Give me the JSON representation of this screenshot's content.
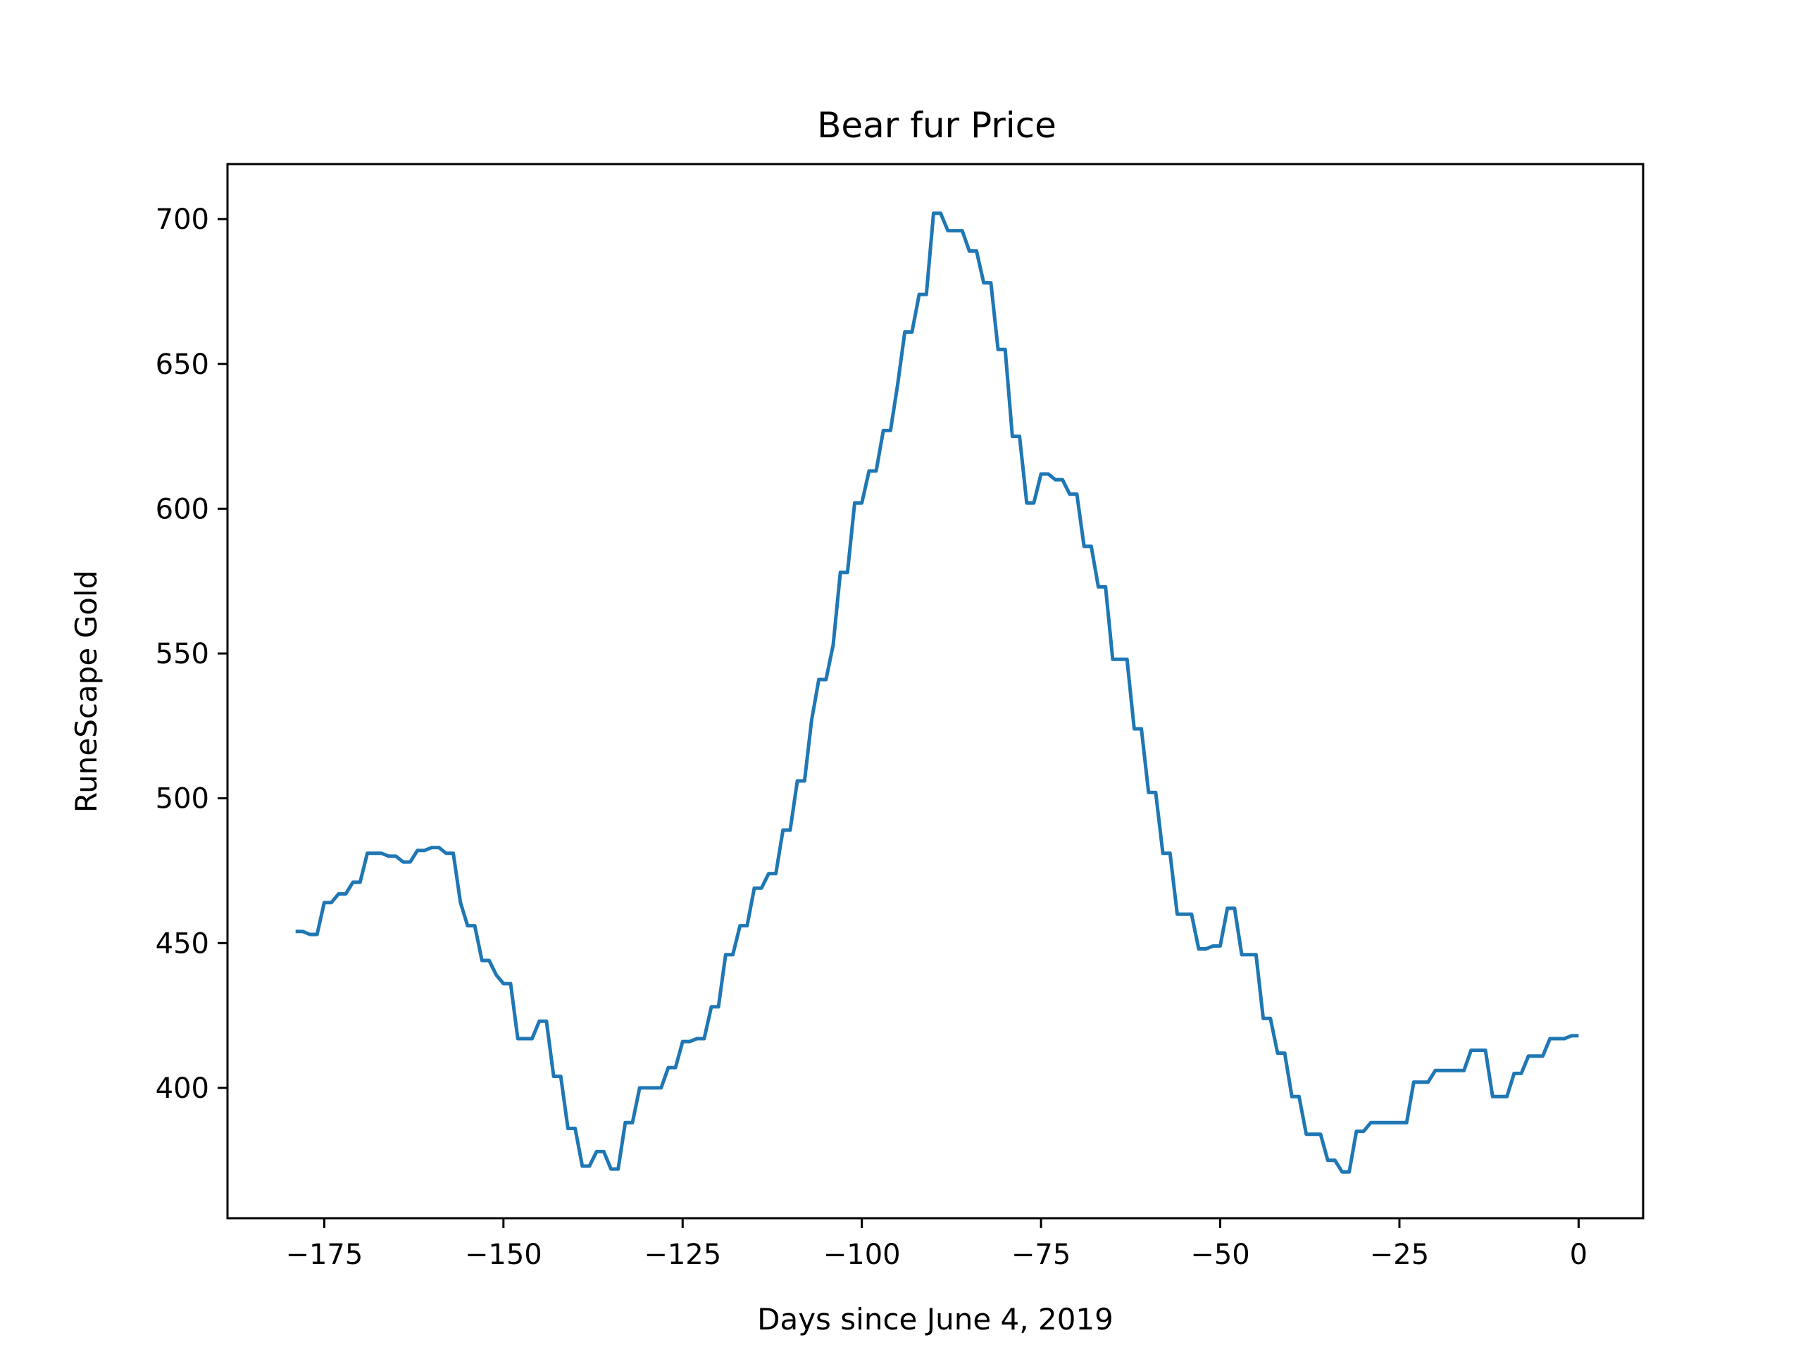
{
  "chart_data": {
    "type": "line",
    "title": "Bear fur Price",
    "xlabel": "Days since June 4, 2019",
    "ylabel": "RuneScape Gold",
    "xlim": [
      -188.5,
      9
    ],
    "ylim": [
      355,
      719
    ],
    "xticks": [
      -175,
      -150,
      -125,
      -100,
      -75,
      -50,
      -25,
      0
    ],
    "yticks": [
      400,
      450,
      500,
      550,
      600,
      650,
      700
    ],
    "grid": false,
    "line_color": "#1f77b4",
    "series": [
      {
        "x": [
          -179,
          -178,
          -177,
          -176,
          -175,
          -174,
          -173,
          -172,
          -171,
          -170,
          -169,
          -168,
          -167,
          -166,
          -165,
          -164,
          -163,
          -162,
          -161,
          -160,
          -159,
          -158,
          -157,
          -156,
          -155,
          -154,
          -153,
          -152,
          -151,
          -150,
          -149,
          -148,
          -147,
          -146,
          -145,
          -144,
          -143,
          -142,
          -141,
          -140,
          -139,
          -138,
          -137,
          -136,
          -135,
          -134,
          -133,
          -132,
          -131,
          -130,
          -129,
          -128,
          -127,
          -126,
          -125,
          -124,
          -123,
          -122,
          -121,
          -120,
          -119,
          -118,
          -117,
          -116,
          -115,
          -114,
          -113,
          -112,
          -111,
          -110,
          -109,
          -108,
          -107,
          -106,
          -105,
          -104,
          -103,
          -102,
          -101,
          -100,
          -99,
          -98,
          -97,
          -96,
          -95,
          -94,
          -93,
          -92,
          -91,
          -90,
          -89,
          -88,
          -87,
          -86,
          -85,
          -84,
          -83,
          -82,
          -81,
          -80,
          -79,
          -78,
          -77,
          -76,
          -75,
          -74,
          -73,
          -72,
          -71,
          -70,
          -69,
          -68,
          -67,
          -66,
          -65,
          -64,
          -63,
          -62,
          -61,
          -60,
          -59,
          -58,
          -57,
          -56,
          -55,
          -54,
          -53,
          -52,
          -51,
          -50,
          -49,
          -48,
          -47,
          -46,
          -45,
          -44,
          -43,
          -42,
          -41,
          -40,
          -39,
          -38,
          -37,
          -36,
          -35,
          -34,
          -33,
          -32,
          -31,
          -30,
          -29,
          -28,
          -27,
          -26,
          -25,
          -24,
          -23,
          -22,
          -21,
          -20,
          -19,
          -18,
          -17,
          -16,
          -15,
          -14,
          -13,
          -12,
          -11,
          -10,
          -9,
          -8,
          -7,
          -6,
          -5,
          -4,
          -3,
          -2,
          -1,
          0
        ],
        "values": [
          454,
          454,
          453,
          453,
          464,
          464,
          467,
          467,
          471,
          471,
          481,
          481,
          481,
          480,
          480,
          478,
          478,
          482,
          482,
          483,
          483,
          481,
          481,
          464,
          456,
          456,
          444,
          444,
          439,
          436,
          436,
          417,
          417,
          417,
          423,
          423,
          404,
          404,
          386,
          386,
          373,
          373,
          378,
          378,
          372,
          372,
          388,
          388,
          400,
          400,
          400,
          400,
          407,
          407,
          416,
          416,
          417,
          417,
          428,
          428,
          446,
          446,
          456,
          456,
          469,
          469,
          474,
          474,
          489,
          489,
          506,
          506,
          527,
          541,
          541,
          553,
          578,
          578,
          602,
          602,
          613,
          613,
          627,
          627,
          643,
          661,
          661,
          674,
          674,
          702,
          702,
          696,
          696,
          696,
          689,
          689,
          678,
          678,
          655,
          655,
          625,
          625,
          602,
          602,
          612,
          612,
          610,
          610,
          605,
          605,
          587,
          587,
          573,
          573,
          548,
          548,
          548,
          524,
          524,
          502,
          502,
          481,
          481,
          460,
          460,
          460,
          448,
          448,
          449,
          449,
          462,
          462,
          446,
          446,
          446,
          424,
          424,
          412,
          412,
          397,
          397,
          384,
          384,
          384,
          375,
          375,
          371,
          371,
          385,
          385,
          388,
          388,
          388,
          388,
          388,
          388,
          402,
          402,
          402,
          406,
          406,
          406,
          406,
          406,
          413,
          413,
          413,
          397,
          397,
          397,
          405,
          405,
          411,
          411,
          411,
          417,
          417,
          417,
          418,
          418
        ]
      }
    ]
  }
}
